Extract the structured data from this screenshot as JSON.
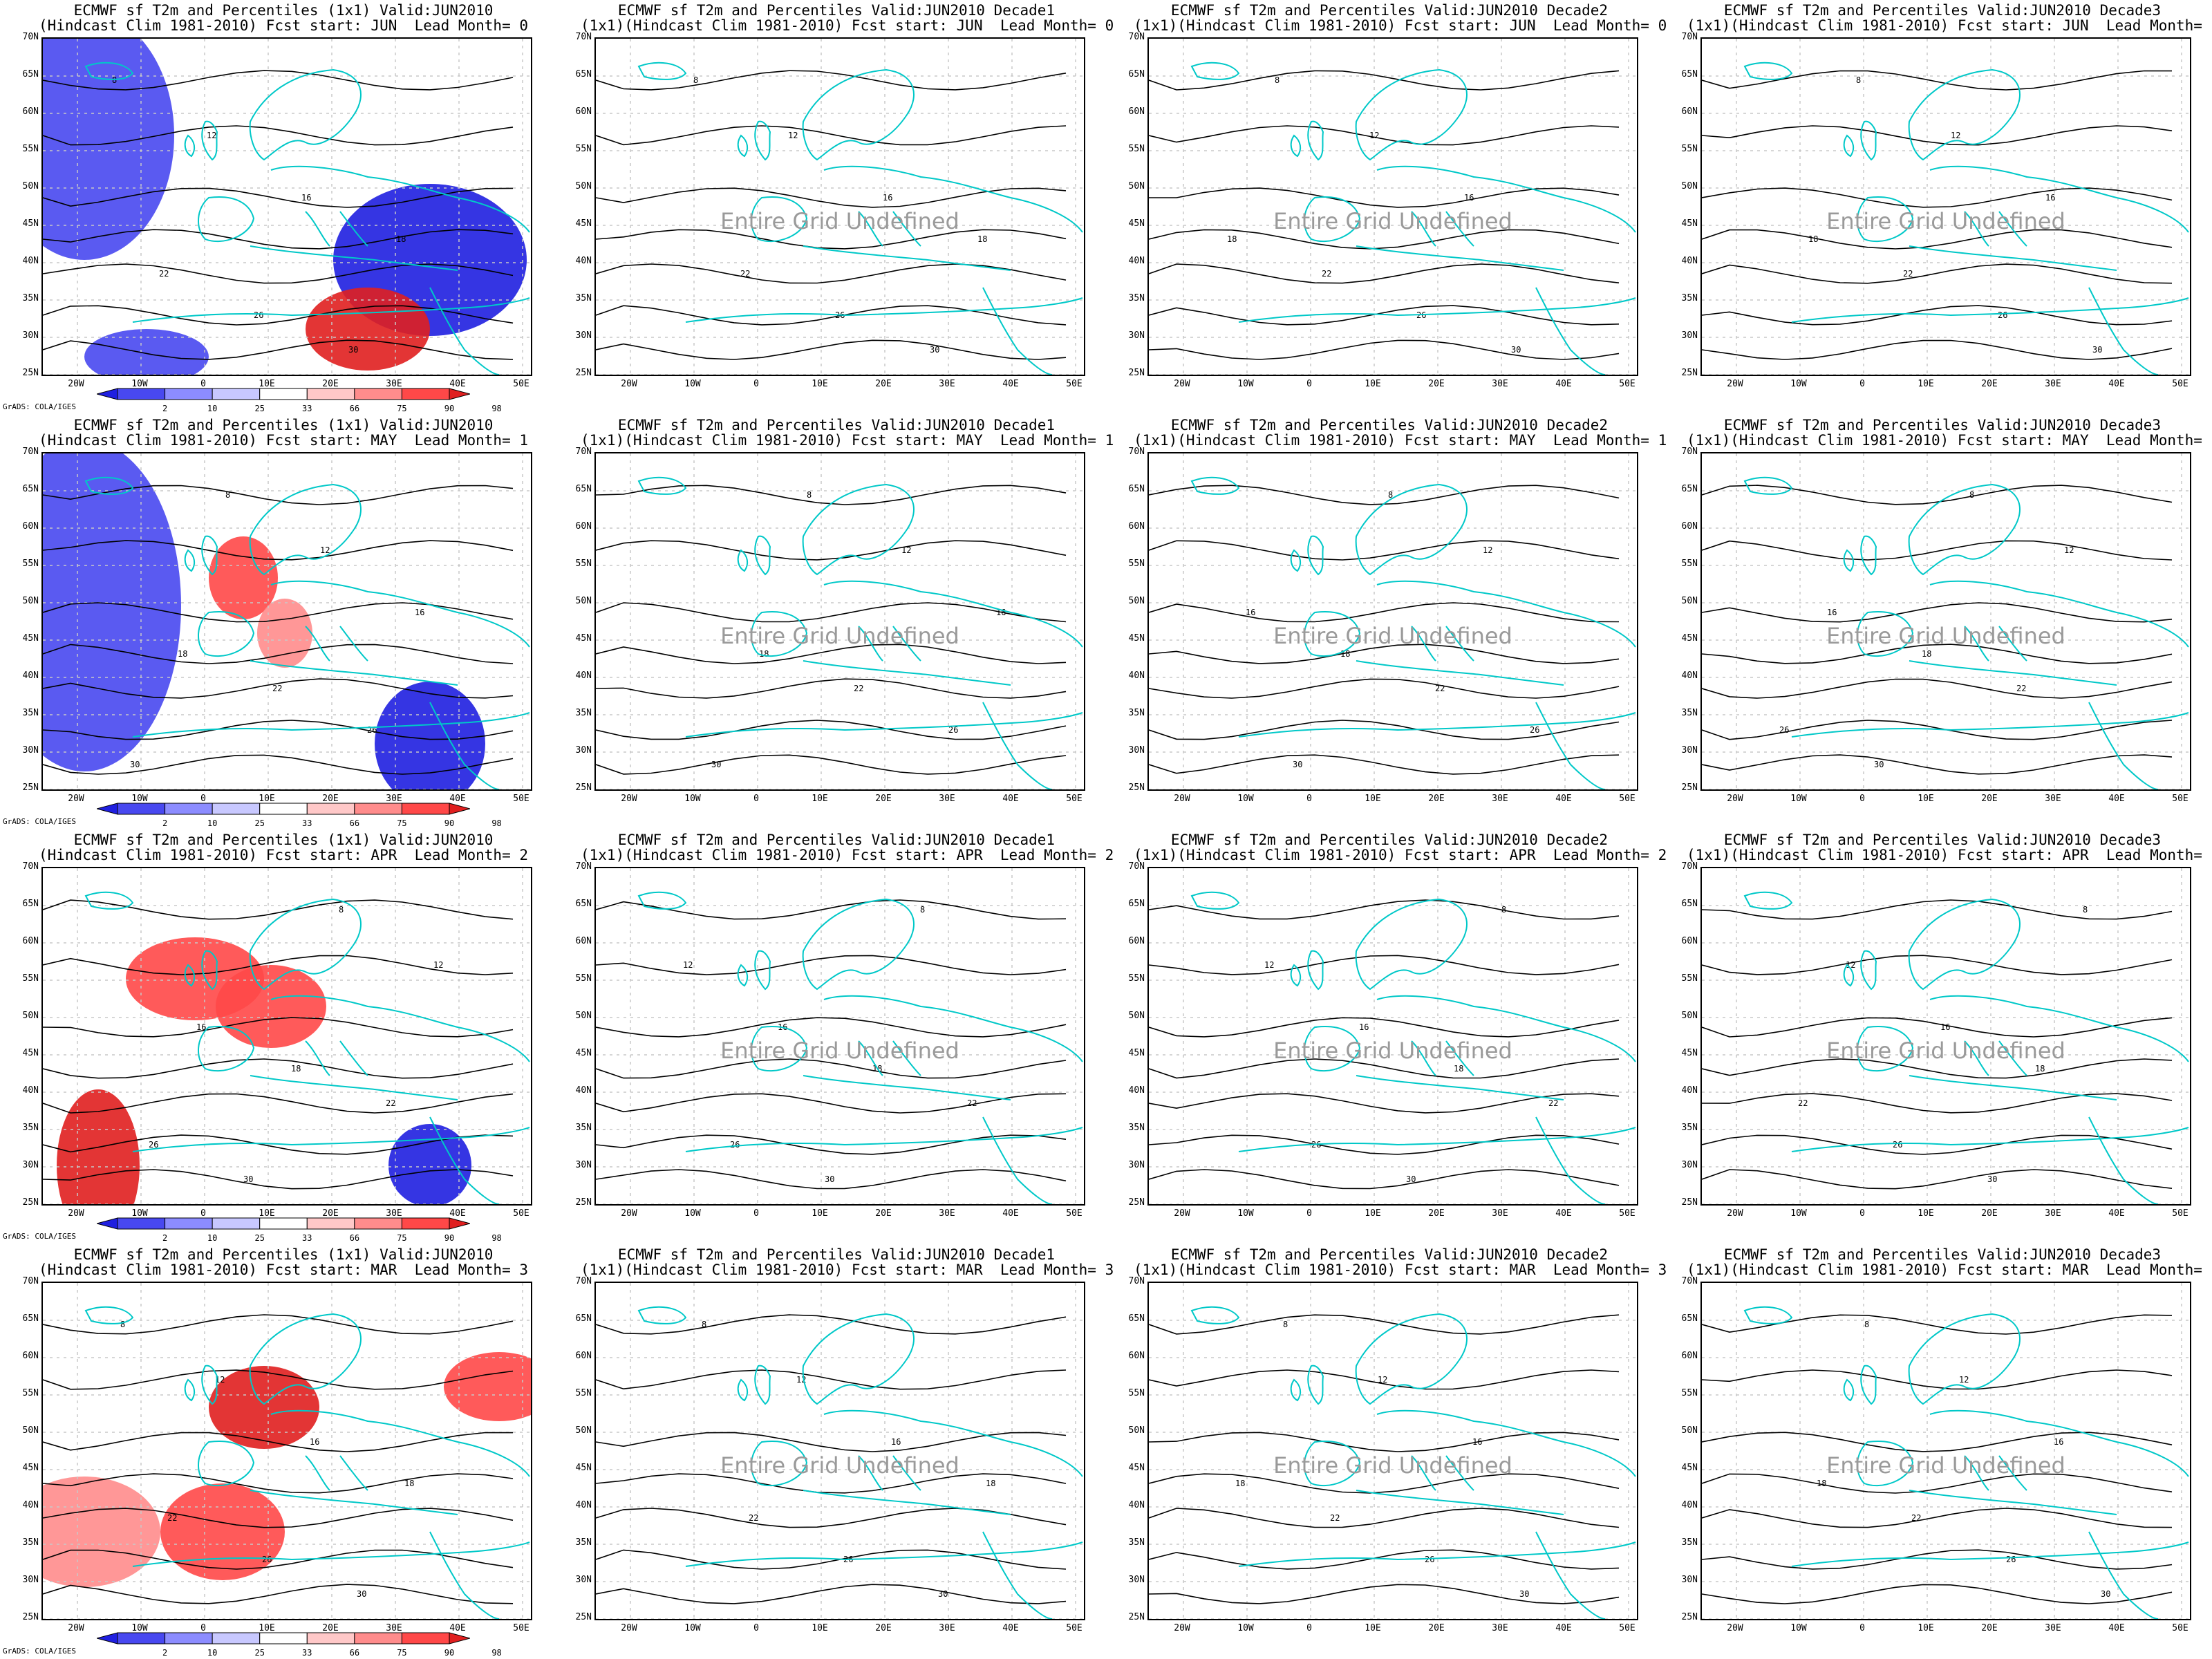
{
  "titles": {
    "anomaly_line1": "ECMWF sf T2m and Percentiles (1x1) Valid:JUN2010",
    "anomaly_line2": "(Hindcast Clim 1981-2010) Fcst start: {start}  Lead Month= {lead}",
    "decade_line1": "ECMWF sf T2m and Percentiles Valid:JUN2010 {decade}",
    "decade_line2": "(1x1)(Hindcast Clim 1981-2010) Fcst start: {start}  Lead Month= {lead}"
  },
  "rows": [
    {
      "start": "JUN",
      "lead": "0"
    },
    {
      "start": "MAY",
      "lead": "1"
    },
    {
      "start": "APR",
      "lead": "2"
    },
    {
      "start": "MAR",
      "lead": "3"
    }
  ],
  "decades": [
    "Decade1",
    "Decade2",
    "Decade3"
  ],
  "undefined_text": "Entire Grid Undefined",
  "lat_labels": [
    "70N",
    "65N",
    "60N",
    "55N",
    "50N",
    "45N",
    "40N",
    "35N",
    "30N",
    "25N"
  ],
  "lon_labels": [
    "20W",
    "10W",
    "0",
    "10E",
    "20E",
    "30E",
    "40E",
    "50E"
  ],
  "colorbar": {
    "labels": [
      "2",
      "10",
      "25",
      "33",
      "66",
      "75",
      "90",
      "98"
    ],
    "colors": [
      "#1f1fe0",
      "#4848f0",
      "#8c8cff",
      "#c8c8ff",
      "#ffffff",
      "#ffc8c8",
      "#ff8c8c",
      "#ff4848",
      "#e01f1f"
    ]
  },
  "credit": "GrADS: COLA/IGES",
  "contour_values": [
    "8",
    "12",
    "16",
    "18",
    "22",
    "26",
    "30"
  ],
  "colors": {
    "coast": "#00c8c8",
    "contour": "#000000",
    "grid": "#c8c8c8"
  }
}
